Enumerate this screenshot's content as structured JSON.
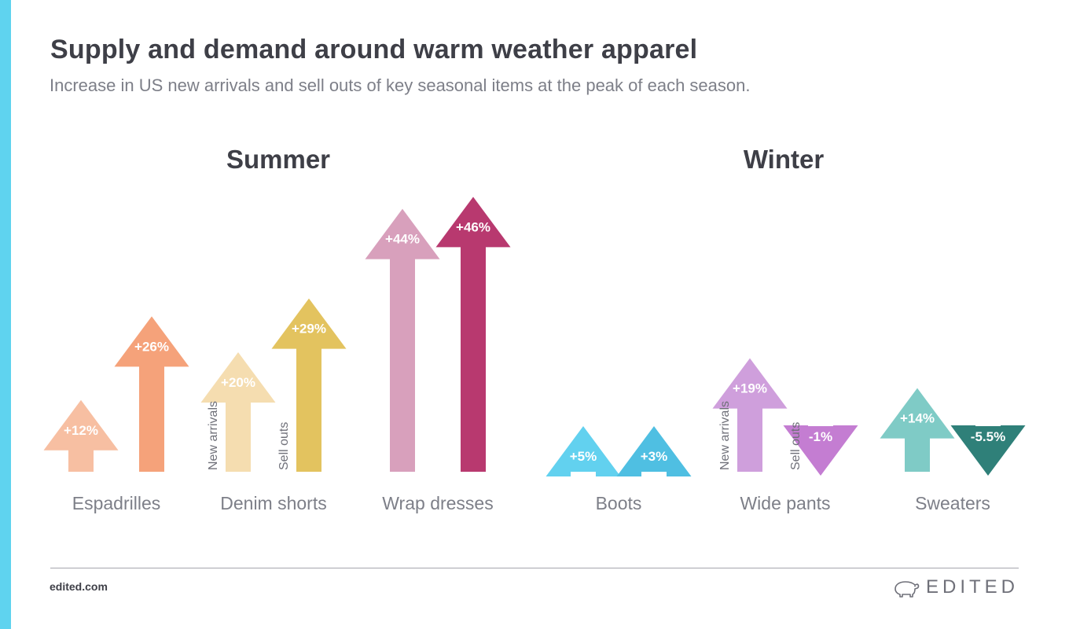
{
  "header": {
    "title": "Supply and demand around warm weather apparel",
    "subtitle": "Increase in US new arrivals and sell outs of key seasonal items at the peak of each season."
  },
  "seasons": {
    "summer": "Summer",
    "winter": "Winter"
  },
  "chart_data": {
    "type": "bar",
    "title": "Supply and demand around warm weather apparel",
    "subtitle": "Increase in US new arrivals and sell outs of key seasonal items at the peak of each season.",
    "categories": [
      "Espadrilles",
      "Denim shorts",
      "Wrap dresses",
      "Boots",
      "Wide pants",
      "Sweaters"
    ],
    "groups": [
      {
        "name": "Summer",
        "categories": [
          "Espadrilles",
          "Denim shorts",
          "Wrap dresses"
        ]
      },
      {
        "name": "Winter",
        "categories": [
          "Boots",
          "Wide pants",
          "Sweaters"
        ]
      }
    ],
    "series": [
      {
        "name": "New arrivals",
        "values": [
          12,
          20,
          44,
          5,
          19,
          14
        ],
        "labels": [
          "+12%",
          "+20%",
          "+44%",
          "+5%",
          "+19%",
          "+14%"
        ]
      },
      {
        "name": "Sell outs",
        "values": [
          26,
          29,
          46,
          3,
          -1,
          -5.5
        ],
        "labels": [
          "+26%",
          "+29%",
          "+46%",
          "+3%",
          "-1%",
          "-5.5%"
        ]
      }
    ],
    "colors": {
      "Espadrilles": [
        "#f7bfa2",
        "#f5a27a"
      ],
      "Denim shorts": [
        "#f5ddb0",
        "#e3c35f"
      ],
      "Wrap dresses": [
        "#d8a0bc",
        "#b8396f"
      ],
      "Boots": [
        "#62d1ef",
        "#4fbfe2"
      ],
      "Wide pants": [
        "#cf9fdc",
        "#c47dd2"
      ],
      "Sweaters": [
        "#7fcbc6",
        "#2f8079"
      ]
    },
    "series_labels_shown_on": [
      "Denim shorts",
      "Wide pants"
    ],
    "unit": "%",
    "ylabel": "",
    "xlabel": "",
    "grid": false,
    "legend": "none"
  },
  "footer": {
    "url": "edited.com",
    "brand": "EDITED",
    "logo_icon": "polar-bear-icon"
  }
}
